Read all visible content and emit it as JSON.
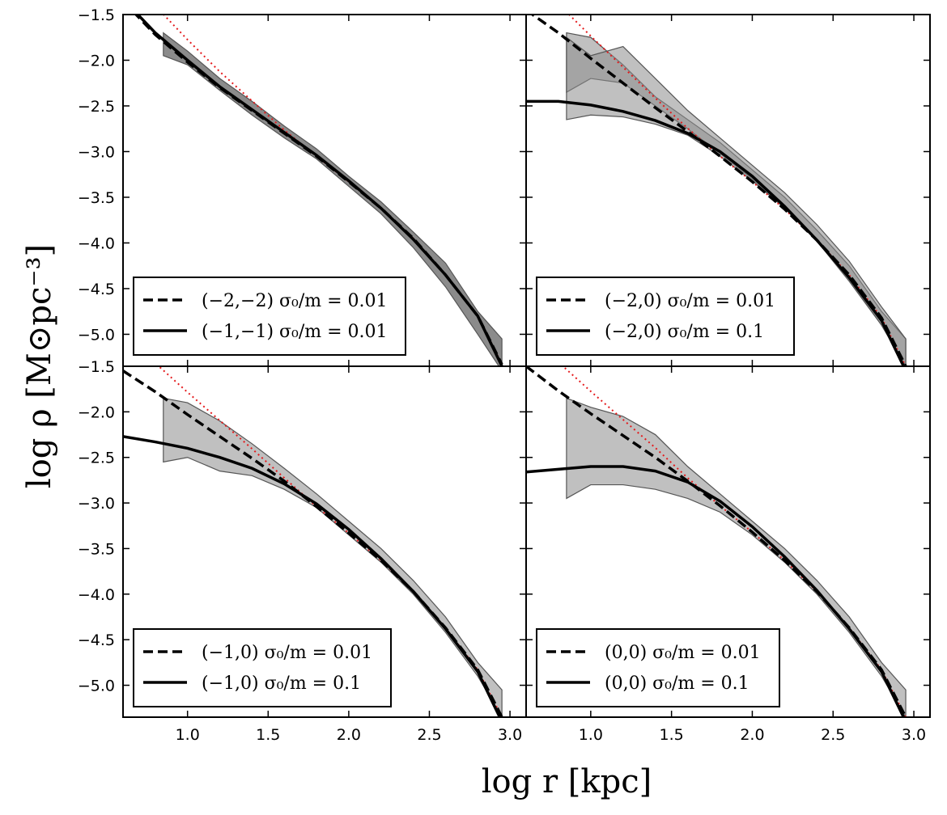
{
  "chart_data": {
    "type": "line",
    "layout": "2x2 grid, shared axes",
    "xlabel": "log r [kpc]",
    "ylabel": "log ρ [M⊙pc⁻³]",
    "xlim": [
      0.6,
      3.1
    ],
    "ylim": [
      -5.35,
      -1.5
    ],
    "xticks": [
      1.0,
      1.5,
      2.0,
      2.5,
      3.0
    ],
    "xtick_labels": [
      "1.0",
      "1.5",
      "2.0",
      "2.5",
      "3.0"
    ],
    "yticks": [
      -1.5,
      -2.0,
      -2.5,
      -3.0,
      -3.5,
      -4.0,
      -4.5,
      -5.0
    ],
    "ytick_labels": [
      "−1.5",
      "−2.0",
      "−2.5",
      "−3.0",
      "−3.5",
      "−4.0",
      "−4.5",
      "−5.0"
    ],
    "legend_position": "lower-left",
    "reference_line": {
      "name": "reference profile",
      "style": "red dotted",
      "color": "#e41a1c"
    },
    "panels": [
      {
        "id": "top-left",
        "series": [
          {
            "name": "(−2,−2) σ₀/m = 0.01",
            "style": "dashed",
            "x": [
              0.6,
              0.8,
              1.0,
              1.2,
              1.4,
              1.6,
              1.8,
              2.0,
              2.2,
              2.4,
              2.6,
              2.8,
              2.95
            ],
            "y": [
              -1.35,
              -1.72,
              -2.02,
              -2.3,
              -2.55,
              -2.8,
              -3.05,
              -3.33,
              -3.62,
              -3.95,
              -4.35,
              -4.8,
              -5.33
            ]
          },
          {
            "name": "(−1,−1) σ₀/m = 0.01",
            "style": "solid",
            "x": [
              0.6,
              0.8,
              1.0,
              1.2,
              1.4,
              1.6,
              1.8,
              2.0,
              2.2,
              2.4,
              2.6,
              2.8,
              2.95
            ],
            "y": [
              -1.33,
              -1.7,
              -2.0,
              -2.29,
              -2.54,
              -2.79,
              -3.04,
              -3.32,
              -3.62,
              -3.96,
              -4.35,
              -4.8,
              -5.35
            ]
          }
        ],
        "bands": [
          {
            "x": [
              0.85,
              1.0,
              1.2,
              1.4,
              1.6,
              1.8,
              2.0,
              2.2,
              2.4,
              2.6,
              2.8,
              2.95
            ],
            "low": [
              -1.95,
              -2.05,
              -2.33,
              -2.6,
              -2.85,
              -3.08,
              -3.38,
              -3.68,
              -4.05,
              -4.48,
              -5.0,
              -5.4
            ],
            "high": [
              -1.7,
              -1.9,
              -2.2,
              -2.45,
              -2.72,
              -2.97,
              -3.27,
              -3.55,
              -3.88,
              -4.22,
              -4.75,
              -5.05
            ]
          }
        ]
      },
      {
        "id": "top-right",
        "series": [
          {
            "name": "(−2,0) σ₀/m = 0.01",
            "style": "dashed",
            "x": [
              0.6,
              0.8,
              1.0,
              1.2,
              1.4,
              1.6,
              1.8,
              2.0,
              2.2,
              2.4,
              2.6,
              2.8,
              2.95
            ],
            "y": [
              -1.45,
              -1.7,
              -1.98,
              -2.25,
              -2.52,
              -2.78,
              -3.05,
              -3.33,
              -3.63,
              -3.97,
              -4.35,
              -4.82,
              -5.35
            ]
          },
          {
            "name": "(−2,0) σ₀/m = 0.1",
            "style": "solid",
            "x": [
              0.6,
              0.8,
              1.0,
              1.2,
              1.4,
              1.6,
              1.8,
              2.0,
              2.2,
              2.4,
              2.6,
              2.8,
              2.95
            ],
            "y": [
              -2.45,
              -2.45,
              -2.49,
              -2.56,
              -2.66,
              -2.8,
              -3.0,
              -3.27,
              -3.6,
              -3.97,
              -4.38,
              -4.85,
              -5.4
            ]
          }
        ],
        "bands": [
          {
            "x": [
              0.85,
              1.0,
              1.2,
              1.4,
              1.6,
              1.8,
              2.0,
              2.2,
              2.4,
              2.6,
              2.8,
              2.95
            ],
            "low": [
              -2.35,
              -2.2,
              -2.25,
              -2.5,
              -2.75,
              -3.02,
              -3.3,
              -3.62,
              -3.98,
              -4.4,
              -4.9,
              -5.35
            ],
            "high": [
              -1.7,
              -1.75,
              -2.05,
              -2.4,
              -2.65,
              -2.9,
              -3.2,
              -3.5,
              -3.86,
              -4.25,
              -4.75,
              -5.05
            ]
          },
          {
            "x": [
              0.85,
              1.0,
              1.2,
              1.4,
              1.6,
              1.8,
              2.0,
              2.2,
              2.4,
              2.6,
              2.8,
              2.95
            ],
            "low": [
              -2.65,
              -2.6,
              -2.62,
              -2.7,
              -2.82,
              -3.05,
              -3.32,
              -3.62,
              -3.98,
              -4.42,
              -4.9,
              -5.35
            ],
            "high": [
              -1.75,
              -1.95,
              -1.85,
              -2.2,
              -2.55,
              -2.85,
              -3.15,
              -3.45,
              -3.8,
              -4.2,
              -4.7,
              -5.05
            ]
          }
        ]
      },
      {
        "id": "bottom-left",
        "series": [
          {
            "name": "(−1,0) σ₀/m = 0.01",
            "style": "dashed",
            "x": [
              0.6,
              0.8,
              1.0,
              1.2,
              1.4,
              1.6,
              1.8,
              2.0,
              2.2,
              2.4,
              2.6,
              2.8,
              2.95
            ],
            "y": [
              -1.55,
              -1.78,
              -2.03,
              -2.27,
              -2.51,
              -2.76,
              -3.04,
              -3.33,
              -3.63,
              -3.97,
              -4.37,
              -4.83,
              -5.35
            ]
          },
          {
            "name": "(−1,0) σ₀/m = 0.1",
            "style": "solid",
            "x": [
              0.6,
              0.8,
              1.0,
              1.2,
              1.4,
              1.6,
              1.8,
              2.0,
              2.2,
              2.4,
              2.6,
              2.8,
              2.95
            ],
            "y": [
              -2.27,
              -2.33,
              -2.4,
              -2.5,
              -2.62,
              -2.79,
              -3.01,
              -3.29,
              -3.61,
              -3.97,
              -4.38,
              -4.85,
              -5.4
            ]
          }
        ],
        "bands": [
          {
            "x": [
              0.85,
              1.0,
              1.2,
              1.4,
              1.6,
              1.8,
              2.0,
              2.2,
              2.4,
              2.6,
              2.8,
              2.95
            ],
            "low": [
              -2.55,
              -2.5,
              -2.65,
              -2.7,
              -2.85,
              -3.05,
              -3.35,
              -3.65,
              -4.0,
              -4.42,
              -4.9,
              -5.35
            ],
            "high": [
              -1.85,
              -1.9,
              -2.1,
              -2.35,
              -2.62,
              -2.9,
              -3.2,
              -3.5,
              -3.85,
              -4.25,
              -4.75,
              -5.05
            ]
          }
        ]
      },
      {
        "id": "bottom-right",
        "series": [
          {
            "name": "(0,0) σ₀/m = 0.01",
            "style": "dashed",
            "x": [
              0.6,
              0.8,
              1.0,
              1.2,
              1.4,
              1.6,
              1.8,
              2.0,
              2.2,
              2.4,
              2.6,
              2.8,
              2.95
            ],
            "y": [
              -1.5,
              -1.77,
              -2.02,
              -2.26,
              -2.5,
              -2.76,
              -3.03,
              -3.32,
              -3.63,
              -3.97,
              -4.37,
              -4.83,
              -5.35
            ]
          },
          {
            "name": "(0,0) σ₀/m = 0.1",
            "style": "solid",
            "x": [
              0.6,
              0.8,
              1.0,
              1.2,
              1.4,
              1.6,
              1.8,
              2.0,
              2.2,
              2.4,
              2.6,
              2.8,
              2.95
            ],
            "y": [
              -2.66,
              -2.63,
              -2.6,
              -2.6,
              -2.65,
              -2.77,
              -2.98,
              -3.26,
              -3.59,
              -3.96,
              -4.38,
              -4.85,
              -5.4
            ]
          }
        ],
        "bands": [
          {
            "x": [
              0.85,
              1.0,
              1.2,
              1.4,
              1.6,
              1.8,
              2.0,
              2.2,
              2.4,
              2.6,
              2.8,
              2.95
            ],
            "low": [
              -2.95,
              -2.8,
              -2.8,
              -2.85,
              -2.95,
              -3.1,
              -3.35,
              -3.65,
              -4.0,
              -4.42,
              -4.9,
              -5.35
            ],
            "high": [
              -1.85,
              -1.95,
              -2.05,
              -2.25,
              -2.6,
              -2.9,
              -3.2,
              -3.5,
              -3.85,
              -4.25,
              -4.75,
              -5.05
            ]
          }
        ]
      }
    ]
  }
}
